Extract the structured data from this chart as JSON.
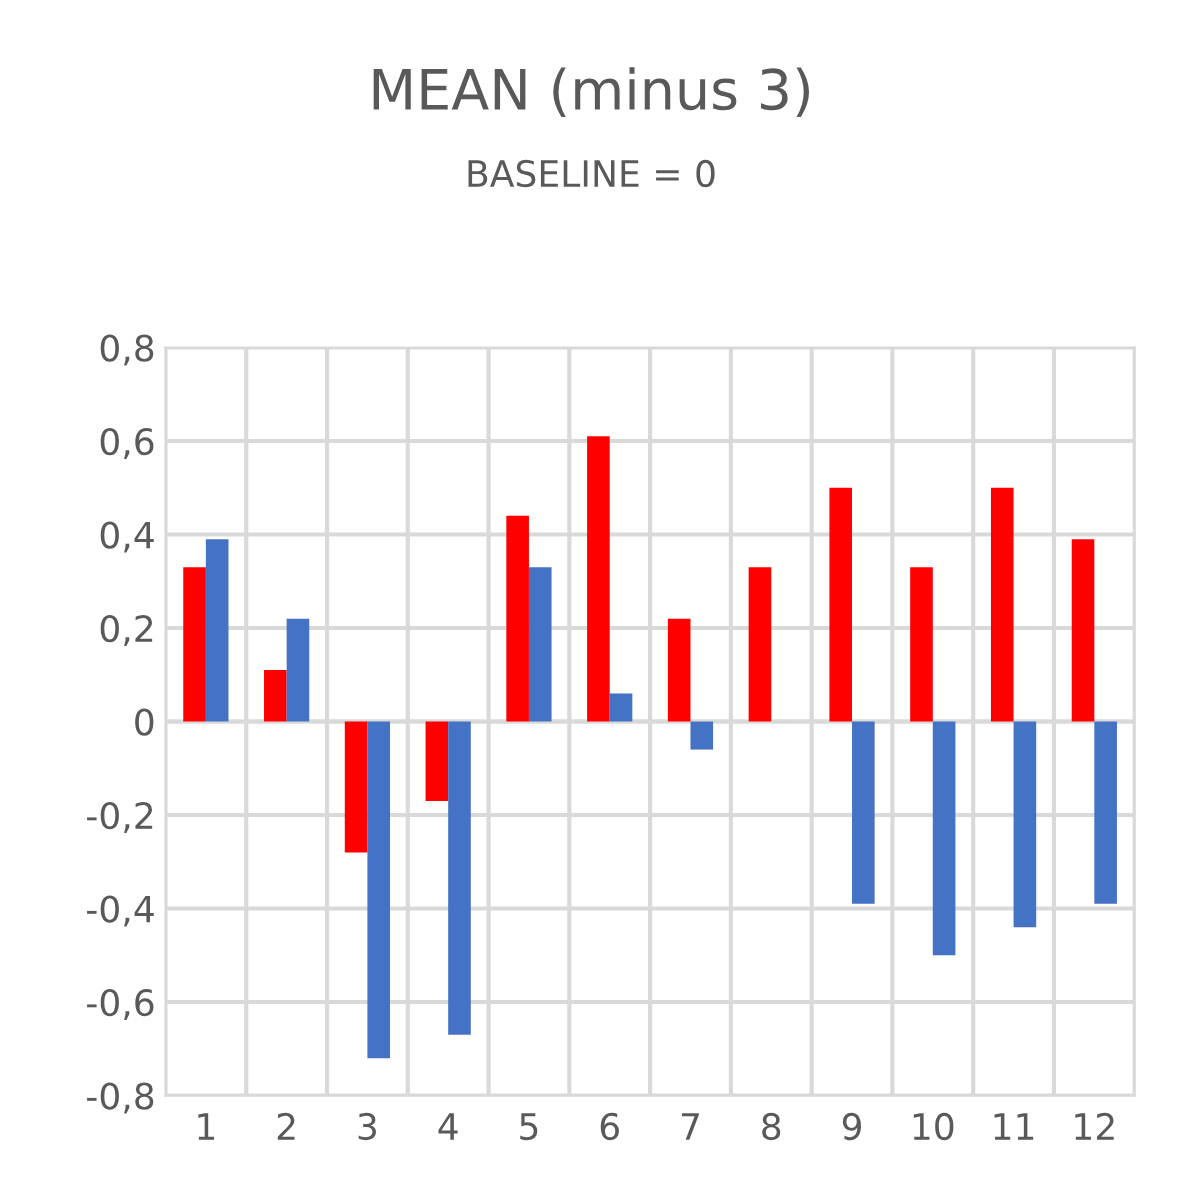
{
  "chart_data": {
    "type": "bar",
    "title": "MEAN (minus 3)",
    "subtitle": "BASELINE = 0",
    "categories": [
      "1",
      "2",
      "3",
      "4",
      "5",
      "6",
      "7",
      "8",
      "9",
      "10",
      "11",
      "12"
    ],
    "series": [
      {
        "color": "#ff0000",
        "values": [
          0.33,
          0.11,
          -0.28,
          -0.17,
          0.44,
          0.61,
          0.22,
          0.33,
          0.5,
          0.33,
          0.5,
          0.39
        ]
      },
      {
        "color": "#4472c4",
        "values": [
          0.39,
          0.22,
          -0.72,
          -0.67,
          0.33,
          0.06,
          -0.06,
          0,
          -0.39,
          -0.5,
          -0.44,
          -0.39
        ]
      }
    ],
    "ylim": [
      -0.8,
      0.8
    ],
    "yticks": [
      {
        "value": -0.8,
        "label": "-0,8"
      },
      {
        "value": -0.6,
        "label": "-0,6"
      },
      {
        "value": -0.4,
        "label": "-0,4"
      },
      {
        "value": -0.2,
        "label": "-0,2"
      },
      0,
      {
        "value": 0.2,
        "label": "0,2"
      },
      {
        "value": 0.4,
        "label": "0,4"
      },
      {
        "value": 0.6,
        "label": "0,6"
      },
      {
        "value": 0.8,
        "label": "0,8"
      }
    ],
    "grid": true,
    "legend": false
  }
}
